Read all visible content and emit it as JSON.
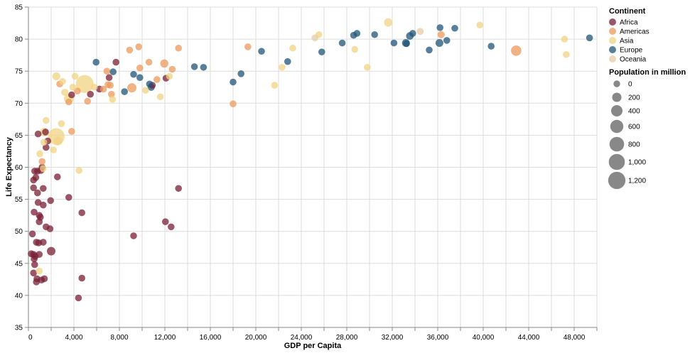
{
  "chart_data": {
    "type": "scatter",
    "title": "",
    "xlabel": "GDP per Capita",
    "ylabel": "Life Expectancy",
    "xlim": [
      0,
      50000
    ],
    "ylim": [
      35,
      85
    ],
    "x_ticks": [
      0,
      2000,
      4000,
      6000,
      8000,
      10000,
      12000,
      14000,
      16000,
      18000,
      20000,
      22000,
      24000,
      26000,
      28000,
      30000,
      32000,
      34000,
      36000,
      38000,
      40000,
      42000,
      44000,
      46000,
      48000,
      50000
    ],
    "x_tick_labels": [
      "0",
      "4,000",
      "8,000",
      "12,000",
      "16,000",
      "20,000",
      "24,000",
      "28,000",
      "32,000",
      "36,000",
      "40,000",
      "44,000",
      "48,000"
    ],
    "x_tick_label_values": [
      0,
      4000,
      8000,
      12000,
      16000,
      20000,
      24000,
      28000,
      32000,
      36000,
      40000,
      44000,
      48000
    ],
    "y_ticks": [
      35,
      40,
      45,
      50,
      55,
      60,
      65,
      70,
      75,
      80,
      85
    ],
    "y_tick_labels": [
      "35",
      "40",
      "45",
      "50",
      "55",
      "60",
      "65",
      "70",
      "75",
      "80",
      "85"
    ],
    "grid": true,
    "legend": {
      "placement": "right",
      "color_title": "Continent",
      "color_entries": [
        {
          "name": "Africa",
          "color": "#7a1f36"
        },
        {
          "name": "Americas",
          "color": "#ec9a5c"
        },
        {
          "name": "Asia",
          "color": "#f2d383"
        },
        {
          "name": "Europe",
          "color": "#1f5478"
        },
        {
          "name": "Oceania",
          "color": "#e6cca4"
        }
      ],
      "size_title": "Population in million",
      "size_entries": [
        {
          "label": "0",
          "value": 0
        },
        {
          "label": "200",
          "value": 200
        },
        {
          "label": "400",
          "value": 400
        },
        {
          "label": "600",
          "value": 600
        },
        {
          "label": "800",
          "value": 800
        },
        {
          "label": "1,000",
          "value": 1000
        },
        {
          "label": "1,200",
          "value": 1200
        }
      ]
    },
    "opacity": 0.75,
    "points": [
      {
        "continent": "Asia",
        "gdp": 4950,
        "life": 73.0,
        "pop": 1300
      },
      {
        "continent": "Asia",
        "gdp": 2450,
        "life": 64.8,
        "pop": 1100
      },
      {
        "continent": "Americas",
        "gdp": 42900,
        "life": 78.2,
        "pop": 300
      },
      {
        "continent": "Americas",
        "gdp": 9100,
        "life": 72.4,
        "pop": 190
      },
      {
        "continent": "Asia",
        "gdp": 3550,
        "life": 70.7,
        "pop": 230
      },
      {
        "continent": "Asia",
        "gdp": 31650,
        "life": 82.6,
        "pop": 127
      },
      {
        "continent": "Asia",
        "gdp": 2450,
        "life": 74.2,
        "pop": 85
      },
      {
        "continent": "Asia",
        "gdp": 1400,
        "life": 65.5,
        "pop": 150
      },
      {
        "continent": "Asia",
        "gdp": 2600,
        "life": 64.1,
        "pop": 160
      },
      {
        "continent": "Africa",
        "gdp": 2000,
        "life": 46.9,
        "pop": 135
      },
      {
        "continent": "Americas",
        "gdp": 11950,
        "life": 76.2,
        "pop": 108
      },
      {
        "continent": "Europe",
        "gdp": 36150,
        "life": 79.4,
        "pop": 82
      },
      {
        "continent": "Europe",
        "gdp": 33200,
        "life": 79.4,
        "pop": 82
      },
      {
        "continent": "Europe",
        "gdp": 33550,
        "life": 80.5,
        "pop": 60
      },
      {
        "continent": "Africa",
        "gdp": 250,
        "life": 46.5,
        "pop": 15
      },
      {
        "continent": "Africa",
        "gdp": 450,
        "life": 46.4,
        "pop": 14
      },
      {
        "continent": "Africa",
        "gdp": 600,
        "life": 46.1,
        "pop": 12
      },
      {
        "continent": "Africa",
        "gdp": 950,
        "life": 46.4,
        "pop": 15
      },
      {
        "continent": "Africa",
        "gdp": 700,
        "life": 48.3,
        "pop": 12
      },
      {
        "continent": "Africa",
        "gdp": 900,
        "life": 48.2,
        "pop": 12
      },
      {
        "continent": "Africa",
        "gdp": 1300,
        "life": 48.3,
        "pop": 12
      },
      {
        "continent": "Africa",
        "gdp": 350,
        "life": 49.6,
        "pop": 10
      },
      {
        "continent": "Africa",
        "gdp": 500,
        "life": 45.7,
        "pop": 10
      },
      {
        "continent": "Africa",
        "gdp": 450,
        "life": 43.5,
        "pop": 10
      },
      {
        "continent": "Africa",
        "gdp": 550,
        "life": 44.8,
        "pop": 10
      },
      {
        "continent": "Africa",
        "gdp": 750,
        "life": 42.6,
        "pop": 10
      },
      {
        "continent": "Africa",
        "gdp": 700,
        "life": 42.1,
        "pop": 12
      },
      {
        "continent": "Africa",
        "gdp": 1150,
        "life": 42.4,
        "pop": 10
      },
      {
        "continent": "Africa",
        "gdp": 1400,
        "life": 42.6,
        "pop": 10
      },
      {
        "continent": "Africa",
        "gdp": 4400,
        "life": 39.6,
        "pop": 10
      },
      {
        "continent": "Africa",
        "gdp": 4700,
        "life": 42.7,
        "pop": 10
      },
      {
        "continent": "Africa",
        "gdp": 4700,
        "life": 52.9,
        "pop": 10
      },
      {
        "continent": "Africa",
        "gdp": 500,
        "life": 53.0,
        "pop": 10
      },
      {
        "continent": "Africa",
        "gdp": 950,
        "life": 52.5,
        "pop": 12
      },
      {
        "continent": "Africa",
        "gdp": 1050,
        "life": 52.2,
        "pop": 10
      },
      {
        "continent": "Africa",
        "gdp": 950,
        "life": 51.5,
        "pop": 10
      },
      {
        "continent": "Africa",
        "gdp": 1550,
        "life": 50.7,
        "pop": 12
      },
      {
        "continent": "Africa",
        "gdp": 1900,
        "life": 50.4,
        "pop": 10
      },
      {
        "continent": "Africa",
        "gdp": 1300,
        "life": 54.1,
        "pop": 10
      },
      {
        "continent": "Africa",
        "gdp": 850,
        "life": 54.5,
        "pop": 10
      },
      {
        "continent": "Africa",
        "gdp": 1950,
        "life": 54.8,
        "pop": 10
      },
      {
        "continent": "Africa",
        "gdp": 3550,
        "life": 55.3,
        "pop": 10
      },
      {
        "continent": "Africa",
        "gdp": 450,
        "life": 56.8,
        "pop": 10
      },
      {
        "continent": "Africa",
        "gdp": 800,
        "life": 56.0,
        "pop": 12
      },
      {
        "continent": "Africa",
        "gdp": 1300,
        "life": 56.7,
        "pop": 10
      },
      {
        "continent": "Africa",
        "gdp": 450,
        "life": 58.0,
        "pop": 10
      },
      {
        "continent": "Africa",
        "gdp": 650,
        "life": 58.4,
        "pop": 10
      },
      {
        "continent": "Africa",
        "gdp": 550,
        "life": 59.4,
        "pop": 10
      },
      {
        "continent": "Africa",
        "gdp": 800,
        "life": 59.4,
        "pop": 12
      },
      {
        "continent": "Africa",
        "gdp": 1100,
        "life": 59.5,
        "pop": 10
      },
      {
        "continent": "Africa",
        "gdp": 1200,
        "life": 60.0,
        "pop": 10
      },
      {
        "continent": "Africa",
        "gdp": 2550,
        "life": 58.5,
        "pop": 10
      },
      {
        "continent": "Africa",
        "gdp": 850,
        "life": 65.2,
        "pop": 10
      },
      {
        "continent": "Africa",
        "gdp": 1500,
        "life": 65.5,
        "pop": 10
      },
      {
        "continent": "Africa",
        "gdp": 1700,
        "life": 64.1,
        "pop": 10
      },
      {
        "continent": "Africa",
        "gdp": 1550,
        "life": 63.1,
        "pop": 10
      },
      {
        "continent": "Africa",
        "gdp": 9250,
        "life": 49.3,
        "pop": 10
      },
      {
        "continent": "Africa",
        "gdp": 12050,
        "life": 51.5,
        "pop": 10
      },
      {
        "continent": "Africa",
        "gdp": 12550,
        "life": 50.7,
        "pop": 10
      },
      {
        "continent": "Africa",
        "gdp": 13200,
        "life": 56.7,
        "pop": 10
      },
      {
        "continent": "Africa",
        "gdp": 3800,
        "life": 71.3,
        "pop": 10
      },
      {
        "continent": "Africa",
        "gdp": 5450,
        "life": 71.4,
        "pop": 10
      },
      {
        "continent": "Africa",
        "gdp": 6250,
        "life": 72.2,
        "pop": 10
      },
      {
        "continent": "Africa",
        "gdp": 7100,
        "life": 74.0,
        "pop": 10
      },
      {
        "continent": "Africa",
        "gdp": 7700,
        "life": 76.4,
        "pop": 10
      },
      {
        "continent": "Africa",
        "gdp": 10900,
        "life": 72.8,
        "pop": 10
      },
      {
        "continent": "Africa",
        "gdp": 12100,
        "life": 73.9,
        "pop": 10
      },
      {
        "continent": "Americas",
        "gdp": 1200,
        "life": 60.9,
        "pop": 10
      },
      {
        "continent": "Americas",
        "gdp": 3800,
        "life": 65.6,
        "pop": 10
      },
      {
        "continent": "Americas",
        "gdp": 2750,
        "life": 73.0,
        "pop": 10
      },
      {
        "continent": "Americas",
        "gdp": 3550,
        "life": 70.2,
        "pop": 10
      },
      {
        "continent": "Americas",
        "gdp": 4300,
        "life": 71.9,
        "pop": 10
      },
      {
        "continent": "Americas",
        "gdp": 5200,
        "life": 70.3,
        "pop": 10
      },
      {
        "continent": "Americas",
        "gdp": 6600,
        "life": 72.2,
        "pop": 10
      },
      {
        "continent": "Americas",
        "gdp": 6900,
        "life": 75.0,
        "pop": 10
      },
      {
        "continent": "Americas",
        "gdp": 7000,
        "life": 72.9,
        "pop": 10
      },
      {
        "continent": "Americas",
        "gdp": 7200,
        "life": 72.8,
        "pop": 10
      },
      {
        "continent": "Americas",
        "gdp": 7300,
        "life": 71.4,
        "pop": 10
      },
      {
        "continent": "Americas",
        "gdp": 8900,
        "life": 78.3,
        "pop": 10
      },
      {
        "continent": "Americas",
        "gdp": 9700,
        "life": 78.8,
        "pop": 10
      },
      {
        "continent": "Americas",
        "gdp": 9800,
        "life": 75.5,
        "pop": 10
      },
      {
        "continent": "Americas",
        "gdp": 10600,
        "life": 76.4,
        "pop": 10
      },
      {
        "continent": "Americas",
        "gdp": 11300,
        "life": 73.7,
        "pop": 10
      },
      {
        "continent": "Americas",
        "gdp": 12650,
        "life": 75.3,
        "pop": 10
      },
      {
        "continent": "Americas",
        "gdp": 13200,
        "life": 78.6,
        "pop": 10
      },
      {
        "continent": "Americas",
        "gdp": 18000,
        "life": 69.9,
        "pop": 10
      },
      {
        "continent": "Americas",
        "gdp": 19300,
        "life": 78.8,
        "pop": 10
      },
      {
        "continent": "Americas",
        "gdp": 36300,
        "life": 80.7,
        "pop": 33
      },
      {
        "continent": "Asia",
        "gdp": 950,
        "life": 43.8,
        "pop": 10
      },
      {
        "continent": "Asia",
        "gdp": 1000,
        "life": 62.1,
        "pop": 10
      },
      {
        "continent": "Asia",
        "gdp": 1300,
        "life": 59.8,
        "pop": 10
      },
      {
        "continent": "Asia",
        "gdp": 1350,
        "life": 63.9,
        "pop": 10
      },
      {
        "continent": "Asia",
        "gdp": 1550,
        "life": 67.3,
        "pop": 10
      },
      {
        "continent": "Asia",
        "gdp": 2200,
        "life": 62.7,
        "pop": 10
      },
      {
        "continent": "Asia",
        "gdp": 2900,
        "life": 66.8,
        "pop": 10
      },
      {
        "continent": "Asia",
        "gdp": 3000,
        "life": 73.4,
        "pop": 10
      },
      {
        "continent": "Asia",
        "gdp": 3200,
        "life": 71.7,
        "pop": 30
      },
      {
        "continent": "Asia",
        "gdp": 4100,
        "life": 74.2,
        "pop": 10
      },
      {
        "continent": "Asia",
        "gdp": 3900,
        "life": 72.5,
        "pop": 10
      },
      {
        "continent": "Asia",
        "gdp": 4450,
        "life": 59.5,
        "pop": 10
      },
      {
        "continent": "Asia",
        "gdp": 5800,
        "life": 72.5,
        "pop": 10
      },
      {
        "continent": "Asia",
        "gdp": 7400,
        "life": 70.6,
        "pop": 10
      },
      {
        "continent": "Asia",
        "gdp": 10300,
        "life": 72.0,
        "pop": 10
      },
      {
        "continent": "Asia",
        "gdp": 11600,
        "life": 71.0,
        "pop": 10
      },
      {
        "continent": "Asia",
        "gdp": 12400,
        "life": 74.2,
        "pop": 10
      },
      {
        "continent": "Asia",
        "gdp": 21650,
        "life": 72.8,
        "pop": 10
      },
      {
        "continent": "Asia",
        "gdp": 22300,
        "life": 75.6,
        "pop": 10
      },
      {
        "continent": "Asia",
        "gdp": 23250,
        "life": 78.6,
        "pop": 10
      },
      {
        "continent": "Asia",
        "gdp": 25550,
        "life": 80.7,
        "pop": 10
      },
      {
        "continent": "Asia",
        "gdp": 28700,
        "life": 78.4,
        "pop": 10
      },
      {
        "continent": "Asia",
        "gdp": 29800,
        "life": 75.6,
        "pop": 10
      },
      {
        "continent": "Asia",
        "gdp": 39700,
        "life": 82.2,
        "pop": 10
      },
      {
        "continent": "Asia",
        "gdp": 47150,
        "life": 80.0,
        "pop": 10
      },
      {
        "continent": "Asia",
        "gdp": 47300,
        "life": 77.6,
        "pop": 10
      },
      {
        "continent": "Europe",
        "gdp": 5950,
        "life": 76.4,
        "pop": 10
      },
      {
        "continent": "Europe",
        "gdp": 7450,
        "life": 74.9,
        "pop": 10
      },
      {
        "continent": "Europe",
        "gdp": 8450,
        "life": 71.8,
        "pop": 10
      },
      {
        "continent": "Europe",
        "gdp": 9250,
        "life": 74.5,
        "pop": 10
      },
      {
        "continent": "Europe",
        "gdp": 9800,
        "life": 74.0,
        "pop": 10
      },
      {
        "continent": "Europe",
        "gdp": 10650,
        "life": 73.0,
        "pop": 10
      },
      {
        "continent": "Europe",
        "gdp": 10800,
        "life": 72.5,
        "pop": 38
      },
      {
        "continent": "Europe",
        "gdp": 14600,
        "life": 75.7,
        "pop": 10
      },
      {
        "continent": "Europe",
        "gdp": 15400,
        "life": 75.6,
        "pop": 10
      },
      {
        "continent": "Europe",
        "gdp": 18000,
        "life": 73.3,
        "pop": 10
      },
      {
        "continent": "Europe",
        "gdp": 18700,
        "life": 74.6,
        "pop": 10
      },
      {
        "continent": "Europe",
        "gdp": 20500,
        "life": 78.1,
        "pop": 10
      },
      {
        "continent": "Europe",
        "gdp": 22800,
        "life": 76.5,
        "pop": 10
      },
      {
        "continent": "Europe",
        "gdp": 25800,
        "life": 78.0,
        "pop": 10
      },
      {
        "continent": "Europe",
        "gdp": 27600,
        "life": 79.4,
        "pop": 10
      },
      {
        "continent": "Europe",
        "gdp": 28600,
        "life": 80.6,
        "pop": 10
      },
      {
        "continent": "Europe",
        "gdp": 28900,
        "life": 80.9,
        "pop": 10
      },
      {
        "continent": "Europe",
        "gdp": 30450,
        "life": 80.7,
        "pop": 10
      },
      {
        "continent": "Europe",
        "gdp": 32150,
        "life": 79.4,
        "pop": 10
      },
      {
        "continent": "Europe",
        "gdp": 33250,
        "life": 79.3,
        "pop": 10
      },
      {
        "continent": "Europe",
        "gdp": 33800,
        "life": 80.9,
        "pop": 10
      },
      {
        "continent": "Europe",
        "gdp": 35250,
        "life": 78.3,
        "pop": 10
      },
      {
        "continent": "Europe",
        "gdp": 36200,
        "life": 81.8,
        "pop": 10
      },
      {
        "continent": "Europe",
        "gdp": 36800,
        "life": 79.8,
        "pop": 10
      },
      {
        "continent": "Europe",
        "gdp": 37500,
        "life": 81.7,
        "pop": 10
      },
      {
        "continent": "Europe",
        "gdp": 40700,
        "life": 78.9,
        "pop": 10
      },
      {
        "continent": "Europe",
        "gdp": 49350,
        "life": 80.2,
        "pop": 10
      },
      {
        "continent": "Oceania",
        "gdp": 25200,
        "life": 80.2,
        "pop": 10
      },
      {
        "continent": "Oceania",
        "gdp": 34450,
        "life": 81.2,
        "pop": 20
      }
    ]
  }
}
